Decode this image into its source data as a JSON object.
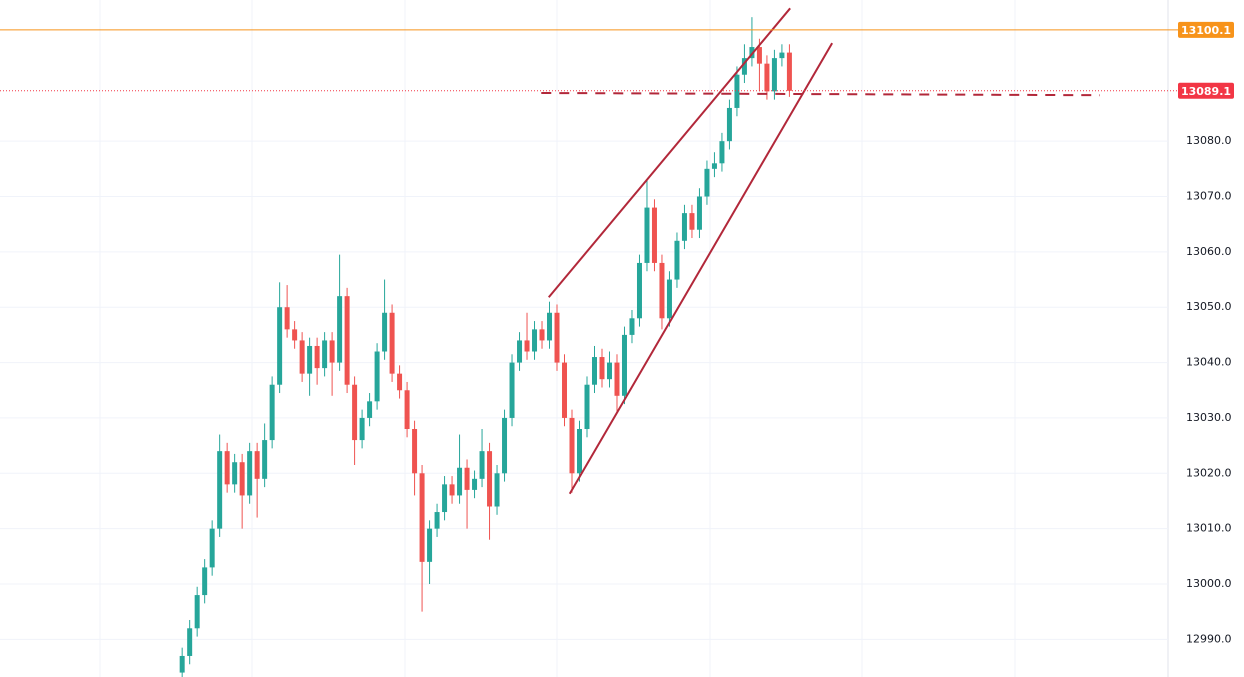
{
  "chart_data": {
    "type": "candlestick",
    "xlim": [
      -24.3,
      131.5
    ],
    "ylim": [
      12983.2,
      13105.5
    ],
    "yticks": [
      {
        "value": 12990,
        "label": "12990.0"
      },
      {
        "value": 13000,
        "label": "13000.0"
      },
      {
        "value": 13010,
        "label": "13010.0"
      },
      {
        "value": 13020,
        "label": "13020.0"
      },
      {
        "value": 13030,
        "label": "13030.0"
      },
      {
        "value": 13040,
        "label": "13040.0"
      },
      {
        "value": 13050,
        "label": "13050.0"
      },
      {
        "value": 13060,
        "label": "13060.0"
      },
      {
        "value": 13070,
        "label": "13070.0"
      },
      {
        "value": 13080,
        "label": "13080.0"
      }
    ],
    "grid": true,
    "up_color": "#26a69a",
    "down_color": "#ef5350",
    "open": [
      12984,
      12987,
      12992,
      12998,
      13003,
      13010,
      13024,
      13018,
      13022,
      13016,
      13024,
      13019,
      13026,
      13036,
      13050,
      13046,
      13044,
      13038,
      13043,
      13039,
      13044,
      13040,
      13052,
      13036,
      13026,
      13030,
      13033,
      13042,
      13049,
      13038,
      13035,
      13028,
      13020,
      13004,
      13010,
      13013,
      13018,
      13016,
      13021,
      13017,
      13019,
      13024,
      13014,
      13020,
      13030,
      13040,
      13044,
      13042,
      13046,
      13044,
      13049,
      13040,
      13030,
      13020,
      13028,
      13036,
      13041,
      13037,
      13040,
      13034,
      13045,
      13048,
      13058,
      13068,
      13058,
      13048,
      13055,
      13062,
      13067,
      13064,
      13070,
      13075,
      13076,
      13080,
      13086,
      13092,
      13095,
      13097,
      13094,
      13089,
      13095,
      13096
    ],
    "high": [
      12988.5,
      12993.5,
      12999.5,
      13004.5,
      13011.5,
      13027,
      13025.5,
      13023.5,
      13023.5,
      13025.5,
      13025.5,
      13029,
      13037.5,
      13054.5,
      13054,
      13047.5,
      13045.5,
      13044.5,
      13044.5,
      13045.5,
      13045.5,
      13059.5,
      13053.5,
      13037.5,
      13031.5,
      13034.5,
      13043.5,
      13055,
      13050.5,
      13039.5,
      13036.5,
      13029.5,
      13021.5,
      13011.5,
      13014.5,
      13019.5,
      13019.5,
      13027,
      13022.5,
      13020.5,
      13028,
      13025.5,
      13021.5,
      13031.5,
      13041.5,
      13045.5,
      13049,
      13047.5,
      13047.5,
      13051,
      13050.5,
      13041.5,
      13031.5,
      13029.5,
      13037.5,
      13043,
      13042.5,
      13042,
      13041.5,
      13046.5,
      13049.5,
      13059.5,
      13073,
      13069.5,
      13059.5,
      13056.5,
      13063.5,
      13068.5,
      13068.5,
      13071.5,
      13076.5,
      13078,
      13081.5,
      13087.5,
      13093.5,
      13097.5,
      13102.4,
      13098.5,
      13095.5,
      13096.5,
      13097.5,
      13097.5
    ],
    "low": [
      12982.5,
      12985.5,
      12990.5,
      12996.5,
      13001.5,
      13008.5,
      13016.5,
      13016.5,
      13010,
      13014.5,
      13012,
      13017.5,
      13024.5,
      13034.5,
      13044.5,
      13042.5,
      13036.5,
      13034,
      13036,
      13037.5,
      13034,
      13038.5,
      13034.5,
      13021.5,
      13024.5,
      13028.5,
      13031.5,
      13040.5,
      13036.5,
      13033.5,
      13026.5,
      13016,
      12995,
      13000,
      13008.5,
      13011.5,
      13014.5,
      13014.5,
      13010,
      13015.5,
      13017.5,
      13008,
      13012.5,
      13018.5,
      13028.5,
      13038.5,
      13040.5,
      13040.5,
      13042.5,
      13042.5,
      13038.5,
      13028.5,
      13016.5,
      13018.5,
      13026.5,
      13034.5,
      13035.5,
      13035.5,
      13031,
      13032.5,
      13043.5,
      13046.5,
      13056.5,
      13056.5,
      13046,
      13046.5,
      13053.5,
      13060.5,
      13062.5,
      13062.5,
      13068.5,
      13073.5,
      13074.5,
      13078.5,
      13084.5,
      13090.5,
      13093.5,
      13089,
      13087.5,
      13087.5,
      13093.5,
      13088
    ],
    "close": [
      12987,
      12992,
      12998,
      13003,
      13010,
      13024,
      13018,
      13022,
      13016,
      13024,
      13019,
      13026,
      13036,
      13050,
      13046,
      13044,
      13038,
      13043,
      13039,
      13044,
      13040,
      13052,
      13036,
      13026,
      13030,
      13033,
      13042,
      13049,
      13038,
      13035,
      13028,
      13020,
      13004,
      13010,
      13013,
      13018,
      13016,
      13021,
      13017,
      13019,
      13024,
      13014,
      13020,
      13030,
      13040,
      13044,
      13042,
      13046,
      13044,
      13049,
      13040,
      13030,
      13020,
      13028,
      13036,
      13041,
      13037,
      13040,
      13034,
      13045,
      13048,
      13058,
      13068,
      13058,
      13048,
      13055,
      13062,
      13067,
      13064,
      13070,
      13075,
      13076,
      13080,
      13086,
      13092,
      13095,
      13097,
      13094,
      13089,
      13095,
      13096,
      13089.1
    ],
    "price_lines": [
      {
        "value": 13100.1,
        "color": "#f7931a",
        "style": "solid"
      },
      {
        "value": 13089.1,
        "color": "#f23645",
        "style": "dotted"
      }
    ],
    "trendlines": [
      {
        "x": [
          48.9,
          81.1
        ],
        "y": [
          13051.8,
          13104.0
        ],
        "color": "#b2283a",
        "style": "solid"
      },
      {
        "x": [
          51.7,
          86.7
        ],
        "y": [
          13016.3,
          13097.7
        ],
        "color": "#b2283a",
        "style": "solid"
      },
      {
        "x": [
          47.9,
          122.4
        ],
        "y": [
          13088.7,
          13088.3
        ],
        "color": "#b2283a",
        "style": "dashed"
      }
    ]
  }
}
